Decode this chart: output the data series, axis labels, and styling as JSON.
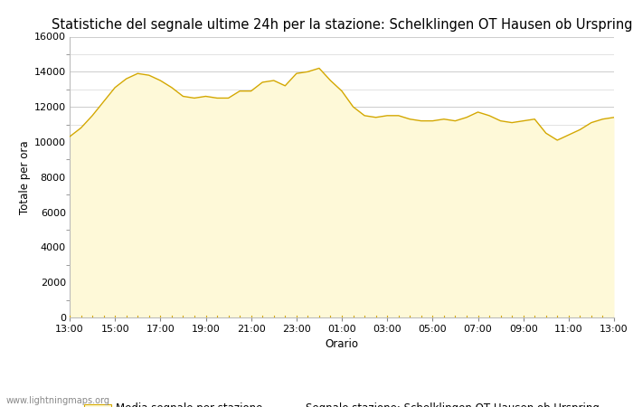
{
  "title": "Statistiche del segnale ultime 24h per la stazione: Schelklingen OT Hausen ob Urspring",
  "xlabel": "Orario",
  "ylabel": "Totale per ora",
  "xlim": [
    0,
    24
  ],
  "ylim": [
    0,
    16000
  ],
  "yticks": [
    0,
    2000,
    4000,
    6000,
    8000,
    10000,
    12000,
    14000,
    16000
  ],
  "xtick_labels": [
    "13:00",
    "15:00",
    "17:00",
    "19:00",
    "21:00",
    "23:00",
    "01:00",
    "03:00",
    "05:00",
    "07:00",
    "09:00",
    "11:00",
    "13:00"
  ],
  "fill_color": "#FEF9D8",
  "line_color": "#D4A800",
  "background_color": "#ffffff",
  "grid_color": "#cccccc",
  "watermark": "www.lightningmaps.org",
  "legend_fill_label": "Media segnale per stazione",
  "legend_line_label": "Segnale stazione: Schelklingen OT Hausen ob Urspring",
  "x_values": [
    0,
    0.5,
    1,
    1.5,
    2,
    2.5,
    3,
    3.5,
    4,
    4.5,
    5,
    5.5,
    6,
    6.5,
    7,
    7.5,
    8,
    8.5,
    9,
    9.5,
    10,
    10.5,
    11,
    11.5,
    12,
    12.5,
    13,
    13.5,
    14,
    14.5,
    15,
    15.5,
    16,
    16.5,
    17,
    17.5,
    18,
    18.5,
    19,
    19.5,
    20,
    20.5,
    21,
    21.5,
    22,
    22.5,
    23,
    23.5,
    24
  ],
  "y_fill": [
    10300,
    10800,
    11500,
    12300,
    13100,
    13600,
    13900,
    13800,
    13500,
    13100,
    12600,
    12500,
    12600,
    12500,
    12500,
    12900,
    12900,
    13400,
    13500,
    13200,
    13900,
    14000,
    14200,
    13500,
    12900,
    12000,
    11500,
    11400,
    11500,
    11500,
    11300,
    11200,
    11200,
    11300,
    11200,
    11400,
    11700,
    11500,
    11200,
    11100,
    11200,
    11300,
    10500,
    10100,
    10400,
    10700,
    11100,
    11300,
    11400
  ],
  "y_line": [
    10300,
    10800,
    11500,
    12300,
    13100,
    13600,
    13900,
    13800,
    13500,
    13100,
    12600,
    12500,
    12600,
    12500,
    12500,
    12900,
    12900,
    13400,
    13500,
    13200,
    13900,
    14000,
    14200,
    13500,
    12900,
    12000,
    11500,
    11400,
    11500,
    11500,
    11300,
    11200,
    11200,
    11300,
    11200,
    11400,
    11700,
    11500,
    11200,
    11100,
    11200,
    11300,
    10500,
    10100,
    10400,
    10700,
    11100,
    11300,
    11400
  ],
  "minor_ytick_positions": [
    1000,
    3000,
    5000,
    7000,
    9000,
    11000,
    13000,
    15000
  ],
  "title_fontsize": 10.5,
  "axis_fontsize": 8.5,
  "tick_fontsize": 8
}
